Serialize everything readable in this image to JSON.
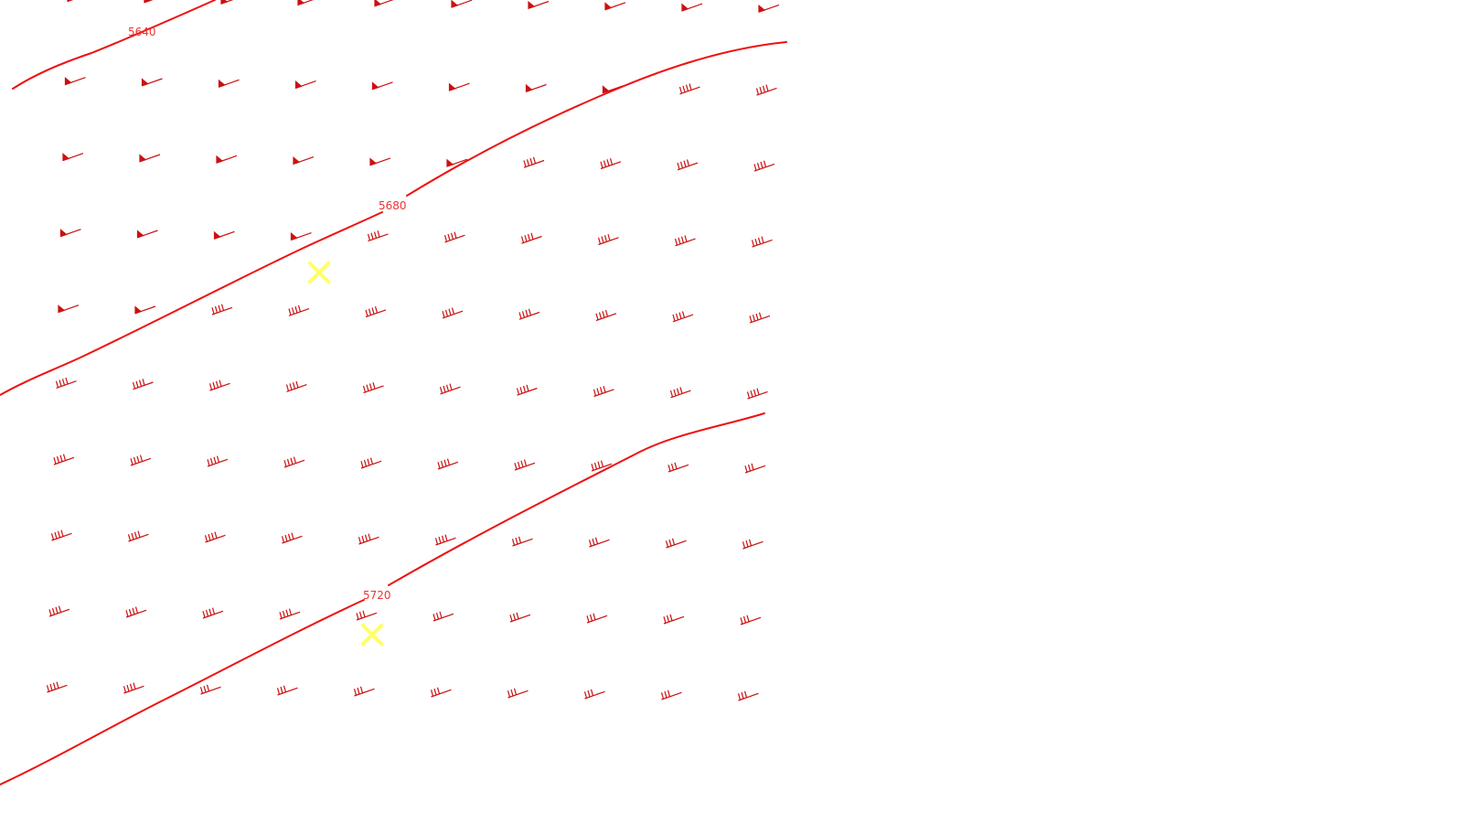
{
  "colors": {
    "contour": "#ee1111",
    "barb": "#cc1111",
    "label": "#ee3333",
    "marker": "#ffff66",
    "background": "#ffffff"
  },
  "contours": [
    {
      "label": "5640"
    },
    {
      "label": "5680"
    },
    {
      "label": "5720"
    }
  ],
  "markers": [
    {
      "icon": "x-marker-icon"
    },
    {
      "icon": "x-marker-icon"
    }
  ]
}
